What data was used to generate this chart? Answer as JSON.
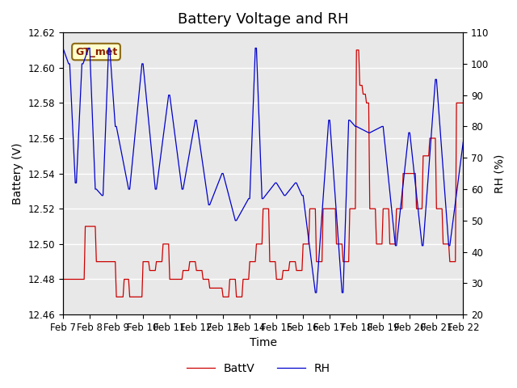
{
  "title": "Battery Voltage and RH",
  "xlabel": "Time",
  "ylabel_left": "Battery (V)",
  "ylabel_right": "RH (%)",
  "station_label": "GT_met",
  "legend_labels": [
    "BattV",
    "RH"
  ],
  "batt_color": "#cc0000",
  "rh_color": "#0000cc",
  "batt_ylim": [
    12.46,
    12.62
  ],
  "rh_ylim": [
    20,
    110
  ],
  "batt_yticks": [
    12.46,
    12.48,
    12.5,
    12.52,
    12.54,
    12.56,
    12.58,
    12.6,
    12.62
  ],
  "rh_yticks": [
    20,
    30,
    40,
    50,
    60,
    70,
    80,
    90,
    100,
    110
  ],
  "xtick_labels": [
    "Feb 7",
    "Feb 8",
    "Feb 9",
    "Feb 10",
    "Feb 11",
    "Feb 12",
    "Feb 13",
    "Feb 14",
    "Feb 15",
    "Feb 16",
    "Feb 17",
    "Feb 18",
    "Feb 19",
    "Feb 20",
    "Feb 21",
    "Feb 22"
  ],
  "plot_bg_color": "#e8e8e8",
  "title_fontsize": 13,
  "label_fontsize": 10,
  "tick_fontsize": 8.5,
  "grid_color": "#ffffff",
  "label_box_facecolor": "#ffffcc",
  "label_box_edgecolor": "#8b6914"
}
